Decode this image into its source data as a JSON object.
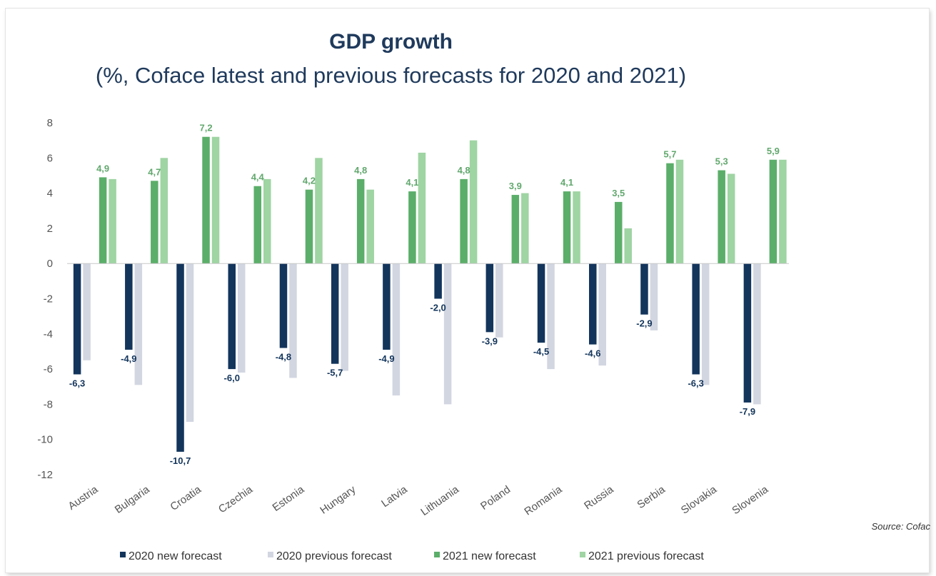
{
  "chart_data": {
    "type": "bar",
    "title": "GDP growth",
    "subtitle": "(%, Coface latest and previous forecasts for 2020 and 2021)",
    "source": "Source: Cofac",
    "categories": [
      "Austria",
      "Bulgaria",
      "Croatia",
      "Czechia",
      "Estonia",
      "Hungary",
      "Latvia",
      "Lithuania",
      "Poland",
      "Romania",
      "Russia",
      "Serbia",
      "Slovakia",
      "Slovenia"
    ],
    "series": [
      {
        "name": "2020 new forecast",
        "color": "#13355c",
        "labeled": true,
        "label_color": "#13355c",
        "values": [
          -6.3,
          -4.9,
          -10.7,
          -6.0,
          -4.8,
          -5.7,
          -4.9,
          -2.0,
          -3.9,
          -4.5,
          -4.6,
          -2.9,
          -6.3,
          -7.9
        ],
        "labels": [
          "-6,3",
          "-4,9",
          "-10,7",
          "-6,0",
          "-4,8",
          "-5,7",
          "-4,9",
          "-2,0",
          "-3,9",
          "-4,5",
          "-4,6",
          "-2,9",
          "-6,3",
          "-7,9"
        ]
      },
      {
        "name": "2020 previous forecast",
        "color": "#d2d6e1",
        "labeled": false,
        "values": [
          -5.5,
          -6.9,
          -9.0,
          -6.2,
          -6.5,
          -6.1,
          -7.5,
          -8.0,
          -4.2,
          -6.0,
          -5.8,
          -3.8,
          -6.9,
          -8.0
        ]
      },
      {
        "name": "2021 new forecast",
        "color": "#5bae69",
        "labeled": true,
        "label_color": "#62a86e",
        "values": [
          4.9,
          4.7,
          7.2,
          4.4,
          4.2,
          4.8,
          4.1,
          4.8,
          3.9,
          4.1,
          3.5,
          5.7,
          5.3,
          5.9
        ],
        "labels": [
          "4,9",
          "4,7",
          "7,2",
          "4,4",
          "4,2",
          "4,8",
          "4,1",
          "4,8",
          "3,9",
          "4,1",
          "3,5",
          "5,7",
          "5,3",
          "5,9"
        ]
      },
      {
        "name": "2021 previous forecast",
        "color": "#9fd4a3",
        "labeled": false,
        "values": [
          4.8,
          6.0,
          7.2,
          4.8,
          6.0,
          4.2,
          6.3,
          7.0,
          4.0,
          4.1,
          2.0,
          5.9,
          5.1,
          5.9
        ]
      }
    ],
    "ylim": [
      -12,
      8
    ],
    "yticks": [
      8,
      6,
      4,
      2,
      0,
      -2,
      -4,
      -6,
      -8,
      -10,
      -12
    ],
    "legend_position": "bottom",
    "grid": false
  }
}
